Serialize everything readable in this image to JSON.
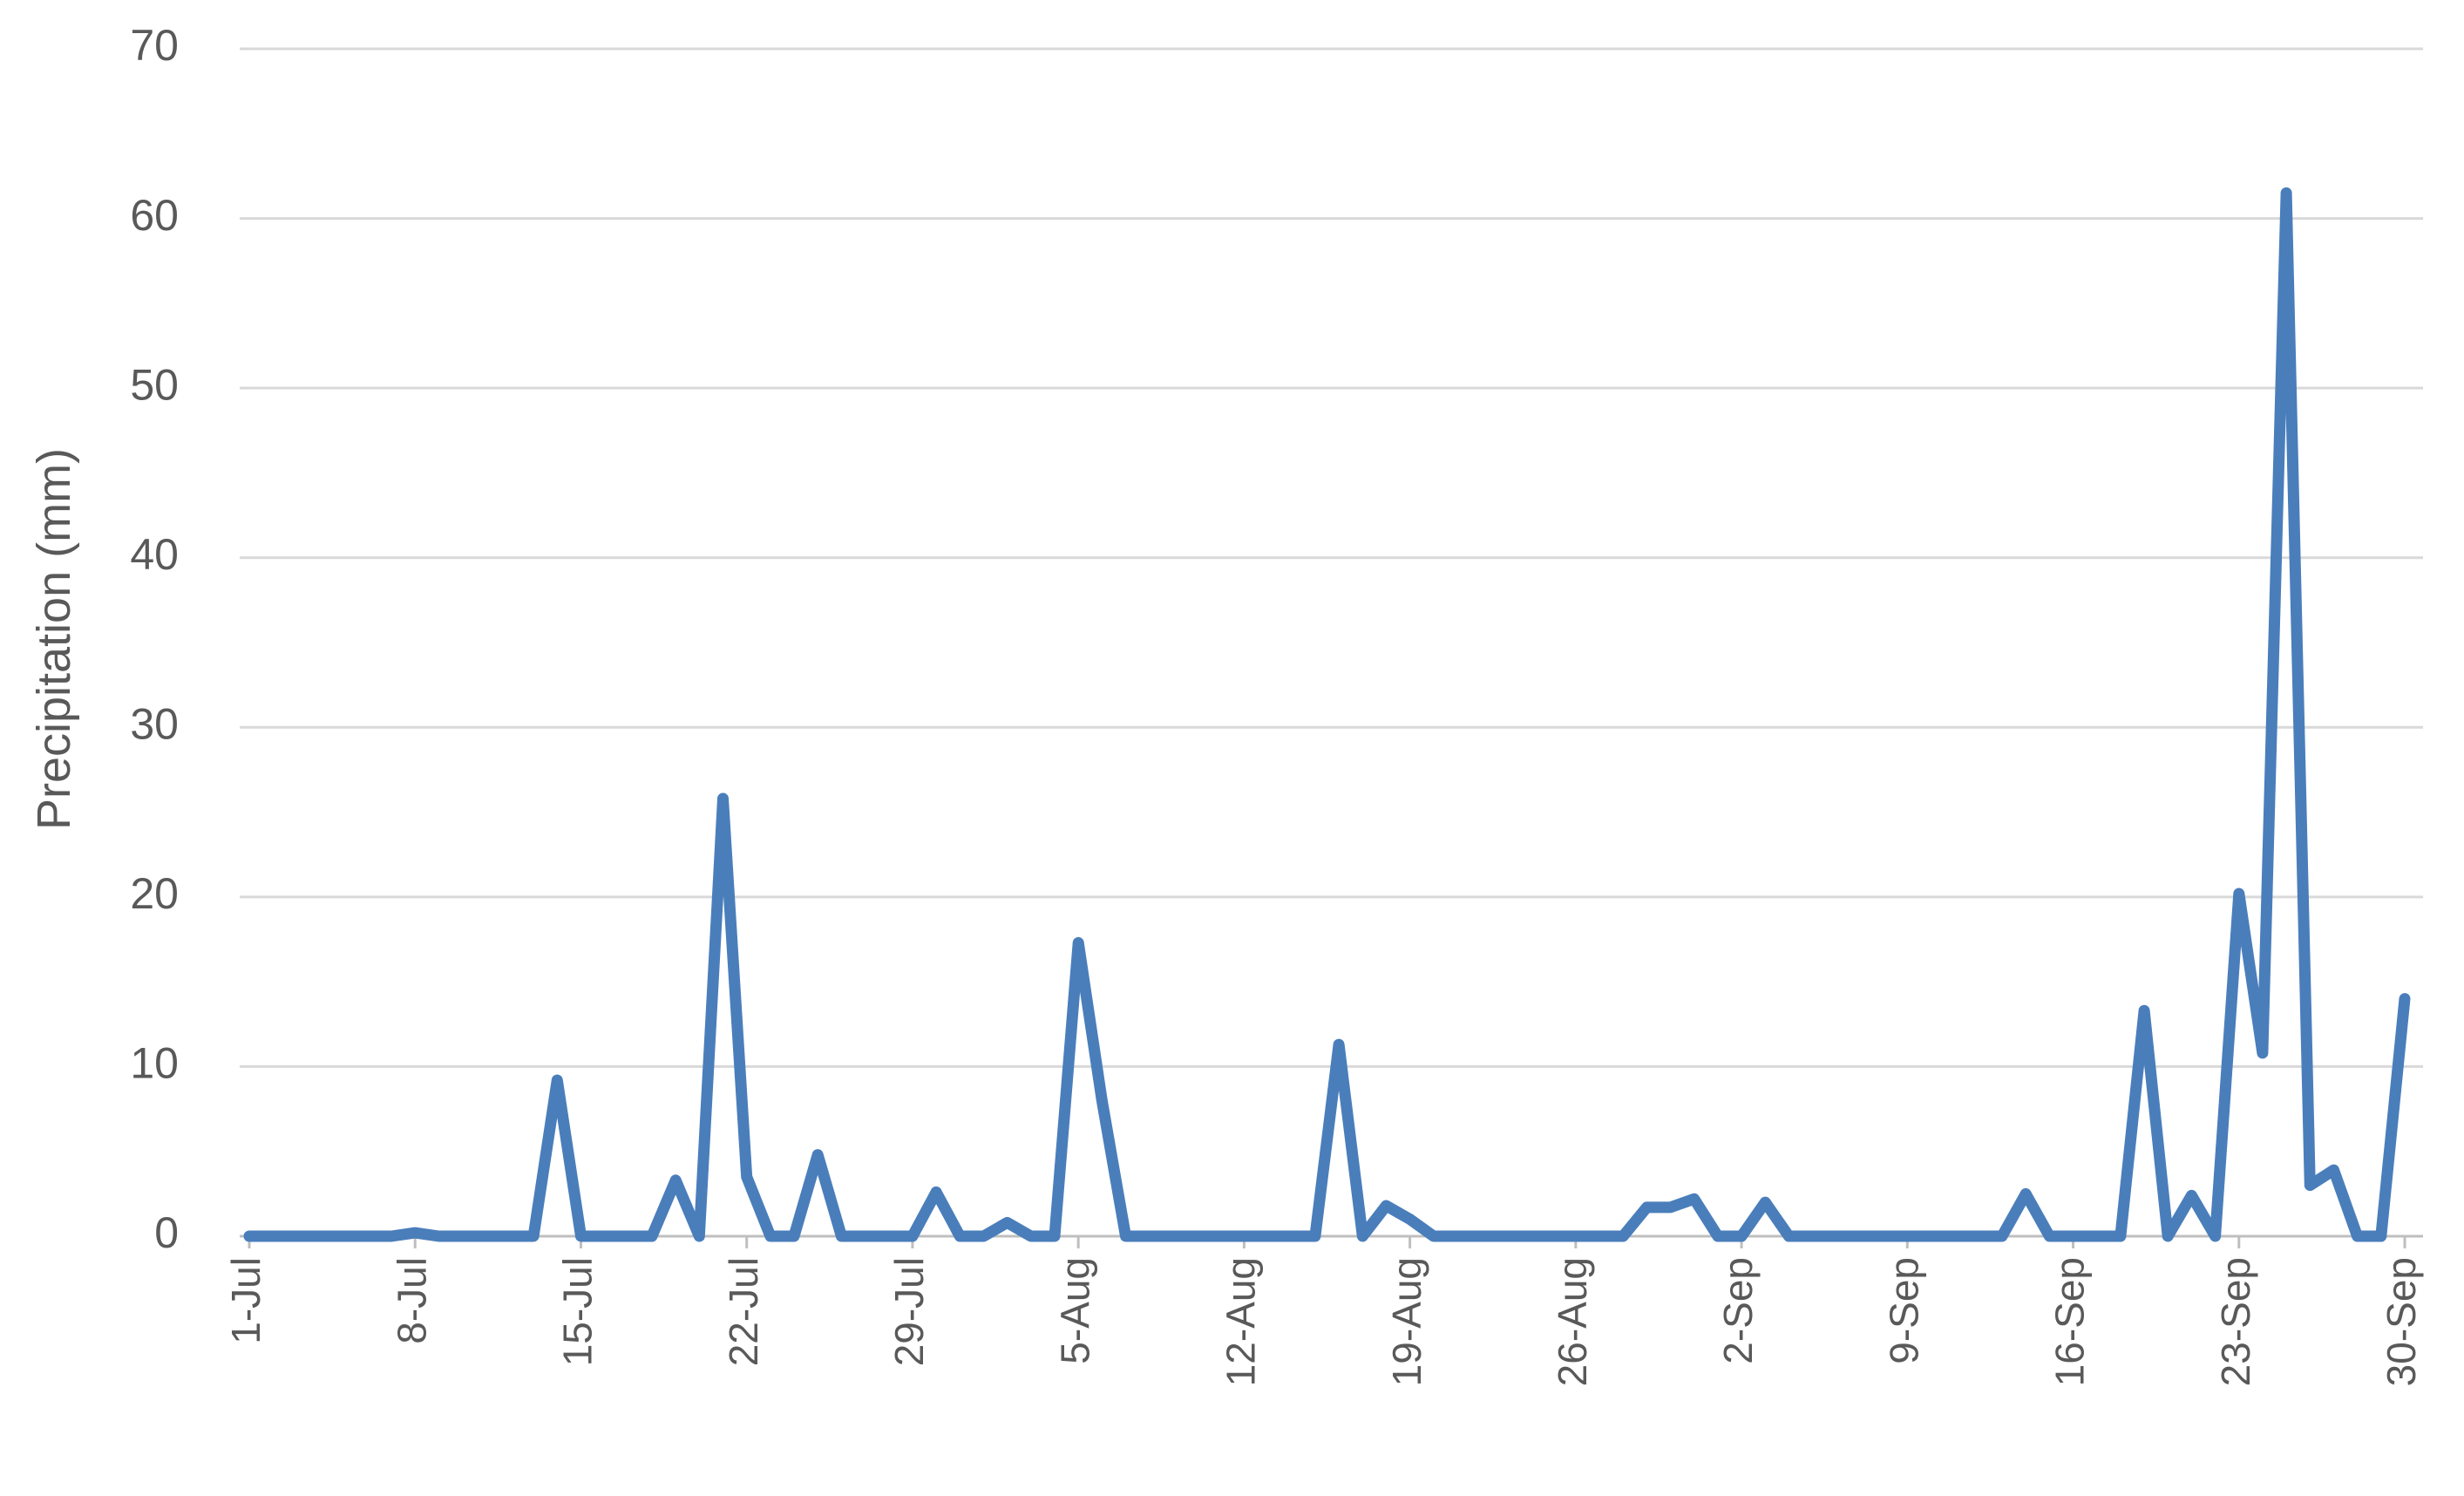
{
  "chart_data": {
    "type": "line",
    "y_label": "Precipitation (mm)",
    "categories": [
      "1-Jul",
      null,
      null,
      null,
      null,
      null,
      null,
      "8-Jul",
      null,
      null,
      null,
      null,
      null,
      null,
      "15-Jul",
      null,
      null,
      null,
      null,
      null,
      null,
      "22-Jul",
      null,
      null,
      null,
      null,
      null,
      null,
      "29-Jul",
      null,
      null,
      null,
      null,
      null,
      null,
      "5-Aug",
      null,
      null,
      null,
      null,
      null,
      null,
      "12-Aug",
      null,
      null,
      null,
      null,
      null,
      null,
      "19-Aug",
      null,
      null,
      null,
      null,
      null,
      null,
      "26-Aug",
      null,
      null,
      null,
      null,
      null,
      null,
      "2-Sep",
      null,
      null,
      null,
      null,
      null,
      null,
      "9-Sep",
      null,
      null,
      null,
      null,
      null,
      null,
      "16-Sep",
      null,
      null,
      null,
      null,
      null,
      null,
      "23-Sep",
      null,
      null,
      null,
      null,
      null,
      null,
      "30-Sep"
    ],
    "values": [
      0,
      0,
      0,
      0,
      0,
      0,
      0,
      0.2,
      0,
      0,
      0,
      0,
      0,
      9.2,
      0,
      0,
      0,
      0,
      3.3,
      0,
      25.8,
      3.5,
      0,
      0,
      4.8,
      0,
      0,
      0,
      0,
      2.6,
      0,
      0,
      0.8,
      0,
      0,
      17.3,
      8,
      0,
      0,
      0,
      0,
      0,
      0,
      0,
      0,
      0,
      11.3,
      0,
      1.8,
      1,
      0,
      0,
      0,
      0,
      0,
      0,
      0,
      0,
      0,
      1.7,
      1.7,
      2.2,
      0,
      0,
      2,
      0,
      0,
      0,
      0,
      0,
      0,
      0,
      0,
      0,
      0,
      2.5,
      0,
      0,
      0,
      0,
      13.3,
      0,
      2.4,
      0,
      20.2,
      10.8,
      61.5,
      3,
      3.9,
      0,
      0,
      14
    ],
    "color": "#4a7ebb",
    "ylim": [
      0,
      70
    ],
    "yticks": [
      0,
      10,
      20,
      30,
      40,
      50,
      60,
      70
    ],
    "grid": true
  }
}
